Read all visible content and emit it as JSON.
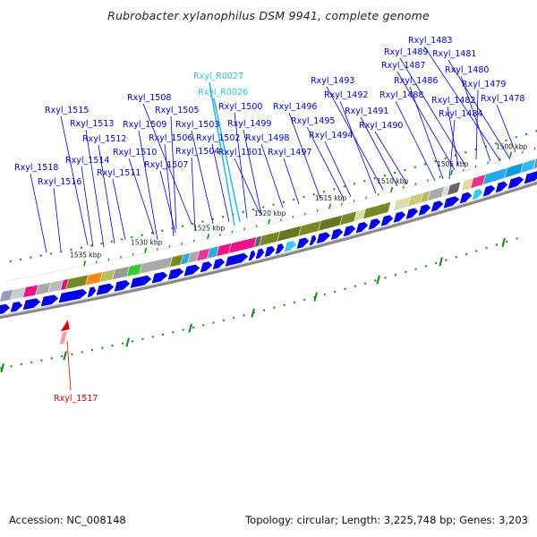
{
  "title": "Rubrobacter xylanophilus DSM 9941, complete genome",
  "accession": "Accession: NC_008148",
  "stats": "Topology: circular; Length: 3,225,748 bp; Genes: 3,203",
  "colors": {
    "forward_gene": "#0000e6",
    "rna_gene": "#33ccee",
    "reverse_gene": "#dd0000",
    "label_gene": "#0000cc",
    "label_rna": "#33bbdd",
    "label_reverse": "#cc0000",
    "tick": "#118811",
    "backbone": "#888888"
  },
  "ticks": [
    {
      "label": "1500 kbp"
    },
    {
      "label": "1505 kbp"
    },
    {
      "label": "1510 kbp"
    },
    {
      "label": "1515 kbp"
    },
    {
      "label": "1520 kbp"
    },
    {
      "label": "1525 kbp"
    },
    {
      "label": "1530 kbp"
    },
    {
      "label": "1535 kbp"
    }
  ],
  "gene_labels": [
    {
      "text": "Rxyl_1483",
      "kind": "gene"
    },
    {
      "text": "Rxyl_1481",
      "kind": "gene"
    },
    {
      "text": "Rxyl_1489",
      "kind": "gene"
    },
    {
      "text": "Rxyl_1487",
      "kind": "gene"
    },
    {
      "text": "Rxyl_1480",
      "kind": "gene"
    },
    {
      "text": "Rxyl_R0027",
      "kind": "rna"
    },
    {
      "text": "Rxyl_1486",
      "kind": "gene"
    },
    {
      "text": "Rxyl_1493",
      "kind": "gene"
    },
    {
      "text": "Rxyl_1479",
      "kind": "gene"
    },
    {
      "text": "Rxyl_R0026",
      "kind": "rna"
    },
    {
      "text": "Rxyl_1508",
      "kind": "gene"
    },
    {
      "text": "Rxyl_1492",
      "kind": "gene"
    },
    {
      "text": "Rxyl_1488",
      "kind": "gene"
    },
    {
      "text": "Rxyl_1478",
      "kind": "gene"
    },
    {
      "text": "Rxyl_1482",
      "kind": "gene"
    },
    {
      "text": "Rxyl_1515",
      "kind": "gene"
    },
    {
      "text": "Rxyl_1505",
      "kind": "gene"
    },
    {
      "text": "Rxyl_1500",
      "kind": "gene"
    },
    {
      "text": "Rxyl_1496",
      "kind": "gene"
    },
    {
      "text": "Rxyl_1491",
      "kind": "gene"
    },
    {
      "text": "Rxyl_1484",
      "kind": "gene"
    },
    {
      "text": "Rxyl_1495",
      "kind": "gene"
    },
    {
      "text": "Rxyl_1509",
      "kind": "gene"
    },
    {
      "text": "Rxyl_1503",
      "kind": "gene"
    },
    {
      "text": "Rxyl_1499",
      "kind": "gene"
    },
    {
      "text": "Rxyl_1513",
      "kind": "gene"
    },
    {
      "text": "Rxyl_1490",
      "kind": "gene"
    },
    {
      "text": "Rxyl_1506",
      "kind": "gene"
    },
    {
      "text": "Rxyl_1502",
      "kind": "gene"
    },
    {
      "text": "Rxyl_1498",
      "kind": "gene"
    },
    {
      "text": "Rxyl_1494",
      "kind": "gene"
    },
    {
      "text": "Rxyl_1512",
      "kind": "gene"
    },
    {
      "text": "Rxyl_1510",
      "kind": "gene"
    },
    {
      "text": "Rxyl_1504",
      "kind": "gene"
    },
    {
      "text": "Rxyl_1501",
      "kind": "gene"
    },
    {
      "text": "Rxyl_1497",
      "kind": "gene"
    },
    {
      "text": "Rxyl_1514",
      "kind": "gene"
    },
    {
      "text": "Rxyl_1507",
      "kind": "gene"
    },
    {
      "text": "Rxyl_1518",
      "kind": "gene"
    },
    {
      "text": "Rxyl_1511",
      "kind": "gene"
    },
    {
      "text": "Rxyl_1516",
      "kind": "gene"
    },
    {
      "text": "Rxyl_1517",
      "kind": "reverse"
    }
  ]
}
